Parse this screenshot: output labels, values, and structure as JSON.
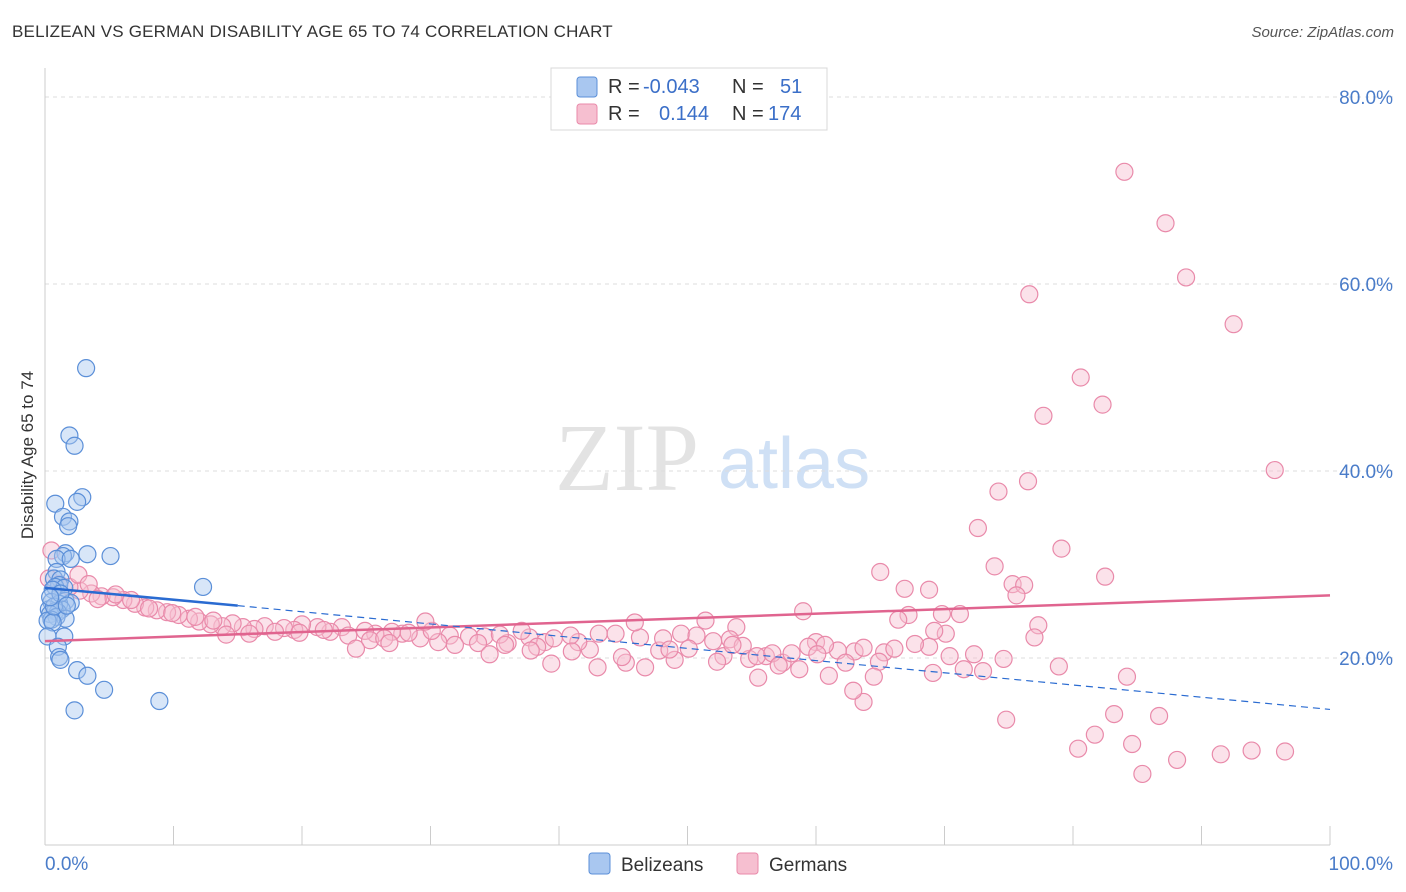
{
  "title": "BELIZEAN VS GERMAN DISABILITY AGE 65 TO 74 CORRELATION CHART",
  "source": "Source: ZipAtlas.com",
  "watermark": {
    "zip": "ZIP",
    "atlas": "atlas"
  },
  "colors": {
    "belizean_fill": "#a9c7f0",
    "belizean_stroke": "#5b8fd8",
    "belizean_line": "#2a6bd1",
    "german_fill": "#f6bfd0",
    "german_stroke": "#e98aaa",
    "german_line": "#e0648f",
    "grid": "#dddddd",
    "axis_label": "#4a7cc9"
  },
  "legend": {
    "rows": [
      {
        "series": "Belizeans",
        "r_label": "R =",
        "r_value": "-0.043",
        "n_label": "N =",
        "n_value": "51"
      },
      {
        "series": "Germans",
        "r_label": "R =",
        "r_value": "0.144",
        "n_label": "N =",
        "n_value": "174"
      }
    ]
  },
  "bottom_legend": [
    "Belizeans",
    "Germans"
  ],
  "chart_data": {
    "type": "scatter",
    "title": "BELIZEAN VS GERMAN DISABILITY AGE 65 TO 74 CORRELATION CHART",
    "xlabel": "",
    "ylabel": "Disability Age 65 to 74",
    "xlim": [
      0,
      100
    ],
    "ylim": [
      0,
      80
    ],
    "x_tick_labels": [
      "0.0%",
      "100.0%"
    ],
    "y_ticks": [
      20,
      40,
      60,
      80
    ],
    "y_tick_labels": [
      "20.0%",
      "40.0%",
      "60.0%",
      "80.0%"
    ],
    "grid": true,
    "legend_position": "top-center",
    "series": [
      {
        "name": "Belizeans",
        "r": -0.043,
        "n": 51,
        "trend": {
          "x0": 0,
          "y0": 27.5,
          "x1": 15,
          "y1": 25.6,
          "dashed_to_x": 100,
          "dashed_to_y": 14.5
        },
        "points": [
          [
            3.2,
            51
          ],
          [
            1.9,
            43.8
          ],
          [
            2.3,
            42.7
          ],
          [
            2.9,
            37.2
          ],
          [
            0.8,
            36.5
          ],
          [
            2.5,
            36.7
          ],
          [
            1.4,
            35.1
          ],
          [
            1.9,
            34.6
          ],
          [
            1.8,
            34.1
          ],
          [
            1.6,
            31.2
          ],
          [
            3.3,
            31.1
          ],
          [
            5.1,
            30.9
          ],
          [
            1.4,
            30.9
          ],
          [
            0.9,
            30.6
          ],
          [
            2.0,
            30.6
          ],
          [
            0.9,
            29.2
          ],
          [
            0.7,
            28.5
          ],
          [
            1.2,
            28.4
          ],
          [
            1.1,
            27.8
          ],
          [
            0.8,
            27.6
          ],
          [
            1.5,
            27.5
          ],
          [
            0.6,
            27.3
          ],
          [
            12.3,
            27.6
          ],
          [
            0.5,
            26.0
          ],
          [
            1.6,
            26.1
          ],
          [
            2.0,
            25.9
          ],
          [
            1.1,
            25.8
          ],
          [
            1.3,
            25.2
          ],
          [
            0.3,
            25.2
          ],
          [
            0.8,
            25.0
          ],
          [
            1.0,
            24.9
          ],
          [
            0.4,
            24.7
          ],
          [
            0.9,
            24.4
          ],
          [
            1.6,
            24.2
          ],
          [
            0.5,
            24.1
          ],
          [
            0.2,
            24.0
          ],
          [
            0.6,
            23.8
          ],
          [
            1.5,
            22.3
          ],
          [
            0.2,
            22.3
          ],
          [
            1.0,
            21.2
          ],
          [
            1.1,
            20.1
          ],
          [
            1.2,
            19.8
          ],
          [
            2.5,
            18.7
          ],
          [
            3.3,
            18.1
          ],
          [
            4.6,
            16.6
          ],
          [
            2.3,
            14.4
          ],
          [
            8.9,
            15.4
          ],
          [
            0.7,
            25.5
          ],
          [
            1.2,
            26.9
          ],
          [
            1.7,
            25.6
          ],
          [
            0.4,
            26.5
          ]
        ]
      },
      {
        "name": "Germans",
        "r": 0.144,
        "n": 174,
        "trend": {
          "x0": 0,
          "y0": 21.8,
          "x1": 100,
          "y1": 26.7
        },
        "points": [
          [
            84.0,
            72
          ],
          [
            87.2,
            66.5
          ],
          [
            88.8,
            60.7
          ],
          [
            76.6,
            58.9
          ],
          [
            92.5,
            55.7
          ],
          [
            80.6,
            50.0
          ],
          [
            82.3,
            47.1
          ],
          [
            77.7,
            45.9
          ],
          [
            95.7,
            40.1
          ],
          [
            76.5,
            38.9
          ],
          [
            74.2,
            37.8
          ],
          [
            72.6,
            33.9
          ],
          [
            79.1,
            31.7
          ],
          [
            73.9,
            29.8
          ],
          [
            82.5,
            28.7
          ],
          [
            65.0,
            29.2
          ],
          [
            75.3,
            27.9
          ],
          [
            76.2,
            27.8
          ],
          [
            66.9,
            27.4
          ],
          [
            68.8,
            27.3
          ],
          [
            75.6,
            26.7
          ],
          [
            59.0,
            25.0
          ],
          [
            67.2,
            24.6
          ],
          [
            69.8,
            24.7
          ],
          [
            71.2,
            24.7
          ],
          [
            66.4,
            24.1
          ],
          [
            77.3,
            23.5
          ],
          [
            51.4,
            24.0
          ],
          [
            53.8,
            23.3
          ],
          [
            70.1,
            22.6
          ],
          [
            69.2,
            22.9
          ],
          [
            68.8,
            21.2
          ],
          [
            60.0,
            21.7
          ],
          [
            61.7,
            20.8
          ],
          [
            63.0,
            20.7
          ],
          [
            65.3,
            20.6
          ],
          [
            72.3,
            20.4
          ],
          [
            74.6,
            19.9
          ],
          [
            57.4,
            19.5
          ],
          [
            56.1,
            20.2
          ],
          [
            52.8,
            20.2
          ],
          [
            54.8,
            19.9
          ],
          [
            49.0,
            19.8
          ],
          [
            47.8,
            20.8
          ],
          [
            45.2,
            19.5
          ],
          [
            42.4,
            20.9
          ],
          [
            41.5,
            21.7
          ],
          [
            38.9,
            21.7
          ],
          [
            37.7,
            22.2
          ],
          [
            36.0,
            21.6
          ],
          [
            34.2,
            22.3
          ],
          [
            33.0,
            22.3
          ],
          [
            31.5,
            22.4
          ],
          [
            30.6,
            21.7
          ],
          [
            29.2,
            22.1
          ],
          [
            27.8,
            22.6
          ],
          [
            27.0,
            22.8
          ],
          [
            25.7,
            22.6
          ],
          [
            24.9,
            22.9
          ],
          [
            23.1,
            23.3
          ],
          [
            22.2,
            22.8
          ],
          [
            21.2,
            23.3
          ],
          [
            20.0,
            23.6
          ],
          [
            19.4,
            23.0
          ],
          [
            18.6,
            23.2
          ],
          [
            17.1,
            23.4
          ],
          [
            16.3,
            23.1
          ],
          [
            15.4,
            23.3
          ],
          [
            14.6,
            23.7
          ],
          [
            13.8,
            23.4
          ],
          [
            12.9,
            23.6
          ],
          [
            12.0,
            23.9
          ],
          [
            11.2,
            24.2
          ],
          [
            10.4,
            24.6
          ],
          [
            9.5,
            24.9
          ],
          [
            8.7,
            25.1
          ],
          [
            7.8,
            25.4
          ],
          [
            7.0,
            25.8
          ],
          [
            6.1,
            26.2
          ],
          [
            5.3,
            26.5
          ],
          [
            4.4,
            26.6
          ],
          [
            3.6,
            26.9
          ],
          [
            2.7,
            27.2
          ],
          [
            1.9,
            27.6
          ],
          [
            1.1,
            27.9
          ],
          [
            0.3,
            28.5
          ],
          [
            0.5,
            31.5
          ],
          [
            2.6,
            28.9
          ],
          [
            3.4,
            27.9
          ],
          [
            4.1,
            26.3
          ],
          [
            5.5,
            26.8
          ],
          [
            6.7,
            26.2
          ],
          [
            8.1,
            25.3
          ],
          [
            9.9,
            24.8
          ],
          [
            11.7,
            24.4
          ],
          [
            13.1,
            24.0
          ],
          [
            14.1,
            22.5
          ],
          [
            15.9,
            22.6
          ],
          [
            17.9,
            22.8
          ],
          [
            19.8,
            22.7
          ],
          [
            21.7,
            23.0
          ],
          [
            23.6,
            22.4
          ],
          [
            25.3,
            21.9
          ],
          [
            26.4,
            22.1
          ],
          [
            28.3,
            22.7
          ],
          [
            30.1,
            22.9
          ],
          [
            31.9,
            21.4
          ],
          [
            33.7,
            21.6
          ],
          [
            35.4,
            22.5
          ],
          [
            37.1,
            22.9
          ],
          [
            38.3,
            21.2
          ],
          [
            39.6,
            22.1
          ],
          [
            40.9,
            22.4
          ],
          [
            43.1,
            22.6
          ],
          [
            44.4,
            22.6
          ],
          [
            46.3,
            22.2
          ],
          [
            48.1,
            22.1
          ],
          [
            49.5,
            22.6
          ],
          [
            50.7,
            22.4
          ],
          [
            52.0,
            21.8
          ],
          [
            53.3,
            22.0
          ],
          [
            54.3,
            21.3
          ],
          [
            55.4,
            20.2
          ],
          [
            56.6,
            20.5
          ],
          [
            58.1,
            20.5
          ],
          [
            59.4,
            21.2
          ],
          [
            60.7,
            21.4
          ],
          [
            62.3,
            19.5
          ],
          [
            63.7,
            21.1
          ],
          [
            64.9,
            19.6
          ],
          [
            66.1,
            21.0
          ],
          [
            67.7,
            21.5
          ],
          [
            69.1,
            18.4
          ],
          [
            70.4,
            20.2
          ],
          [
            71.5,
            18.8
          ],
          [
            73.0,
            18.6
          ],
          [
            74.8,
            13.4
          ],
          [
            77.0,
            22.2
          ],
          [
            78.9,
            19.1
          ],
          [
            80.4,
            10.3
          ],
          [
            81.7,
            11.8
          ],
          [
            83.2,
            14.0
          ],
          [
            84.6,
            10.8
          ],
          [
            85.4,
            7.6
          ],
          [
            88.1,
            9.1
          ],
          [
            91.5,
            9.7
          ],
          [
            93.9,
            10.1
          ],
          [
            96.5,
            10.0
          ],
          [
            84.2,
            18.0
          ],
          [
            86.7,
            13.8
          ],
          [
            63.7,
            15.3
          ],
          [
            62.9,
            16.5
          ],
          [
            64.5,
            18.0
          ],
          [
            61.0,
            18.1
          ],
          [
            60.1,
            20.4
          ],
          [
            58.7,
            18.8
          ],
          [
            57.1,
            19.2
          ],
          [
            55.5,
            17.9
          ],
          [
            53.5,
            21.4
          ],
          [
            52.3,
            19.6
          ],
          [
            50.1,
            21.0
          ],
          [
            48.6,
            20.9
          ],
          [
            46.7,
            19.0
          ],
          [
            44.9,
            20.1
          ],
          [
            43.0,
            19.0
          ],
          [
            41.0,
            20.7
          ],
          [
            39.4,
            19.4
          ],
          [
            37.8,
            20.8
          ],
          [
            35.8,
            21.4
          ],
          [
            34.6,
            20.4
          ],
          [
            26.8,
            21.6
          ],
          [
            24.2,
            21.0
          ],
          [
            45.9,
            23.8
          ],
          [
            29.6,
            23.9
          ]
        ]
      }
    ]
  }
}
